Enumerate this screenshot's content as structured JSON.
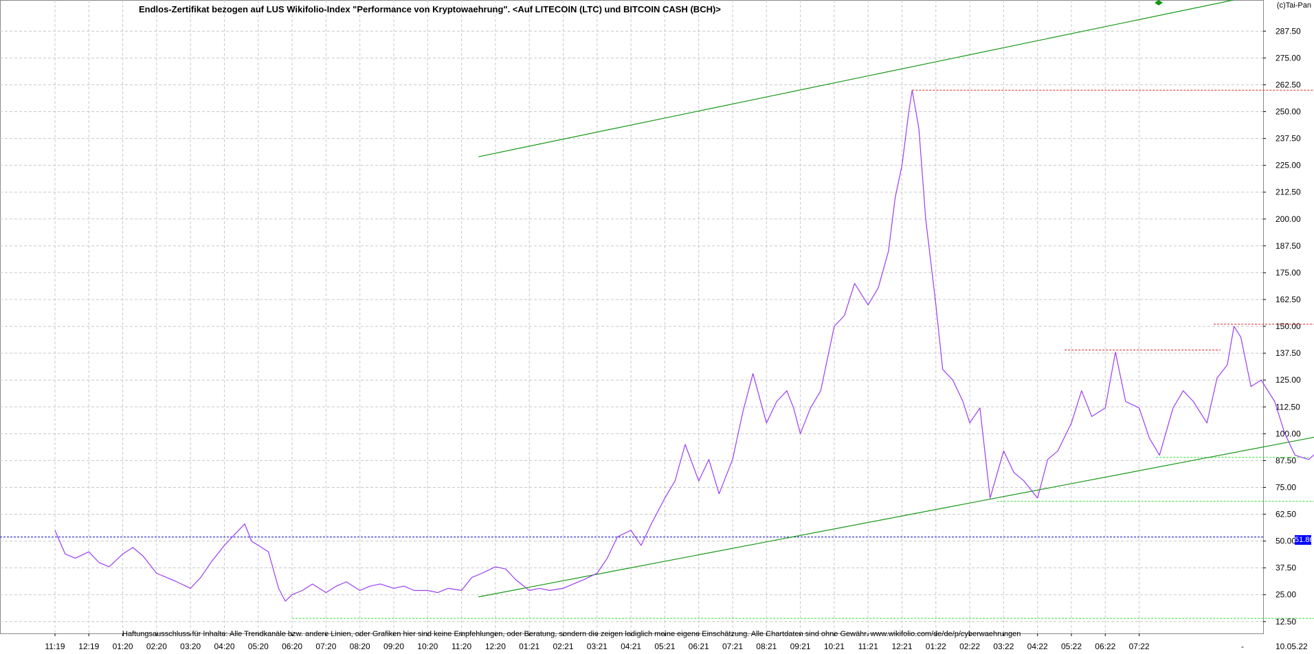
{
  "title": "Endlos-Zertifikat bezogen auf LUS Wikifolio-Index \"Performance von Kryptowaehrung\". <Auf LITECOIN (LTC) und BITCOIN CASH (BCH)>",
  "copyright": "(c)Tai-Pan",
  "disclaimer": "Haftungsausschluss für Inhalte: Alle Trendkanäle bzw. andere Linien, oder Grafiken hier sind keine Empfehlungen, oder Beratung, sondern die zeigen lediglich meine eigene Einschätzung. Alle Chartdaten sind ohne Gewähr.  www.wikifolio.com/de/de/p/cyberwaehrungen",
  "last_price_label": "51.86",
  "date_label": "10.05.22",
  "dash_label": "-",
  "colors": {
    "price_line": "#9a3cf0",
    "trend_line": "#139613",
    "support_line": "#33dd33",
    "resistance_line": "#dd2222",
    "last_price_line": "#0000cc",
    "grid": "#c8c8c8"
  },
  "chart_data": {
    "type": "line",
    "x_tick_labels": [
      "11:19",
      "12:19",
      "01:20",
      "02:20",
      "03:20",
      "04:20",
      "05:20",
      "06:20",
      "07:20",
      "08:20",
      "09:20",
      "10:20",
      "11:20",
      "12:20",
      "01:21",
      "02:21",
      "03:21",
      "04:21",
      "05:21",
      "06:21",
      "07:21",
      "08:21",
      "09:21",
      "10:21",
      "11:21",
      "12:21",
      "01:22",
      "02:22",
      "03:22",
      "04:22",
      "05:22",
      "06:22",
      "07:22"
    ],
    "y_tick_labels": [
      "12.50",
      "25.00",
      "37.50",
      "50.00",
      "62.50",
      "75.00",
      "87.50",
      "100.00",
      "112.50",
      "125.00",
      "137.50",
      "150.00",
      "162.50",
      "175.00",
      "187.50",
      "200.00",
      "212.50",
      "225.00",
      "237.50",
      "250.00",
      "262.50",
      "275.00",
      "287.50"
    ],
    "ylim": [
      7,
      302
    ],
    "grid": true,
    "series": [
      {
        "values": [
          [
            0.0,
            55
          ],
          [
            0.3,
            44
          ],
          [
            0.6,
            42
          ],
          [
            1.0,
            45
          ],
          [
            1.3,
            40
          ],
          [
            1.6,
            38
          ],
          [
            2.0,
            44
          ],
          [
            2.3,
            47
          ],
          [
            2.6,
            43
          ],
          [
            3.0,
            35
          ],
          [
            3.3,
            33
          ],
          [
            3.6,
            31
          ],
          [
            4.0,
            28
          ],
          [
            4.3,
            33
          ],
          [
            4.6,
            40
          ],
          [
            5.0,
            48
          ],
          [
            5.3,
            53
          ],
          [
            5.6,
            58
          ],
          [
            5.8,
            50
          ],
          [
            6.0,
            48
          ],
          [
            6.3,
            45
          ],
          [
            6.6,
            28
          ],
          [
            6.8,
            22
          ],
          [
            7.0,
            25
          ],
          [
            7.3,
            27
          ],
          [
            7.6,
            30
          ],
          [
            8.0,
            26
          ],
          [
            8.3,
            29
          ],
          [
            8.6,
            31
          ],
          [
            9.0,
            27
          ],
          [
            9.3,
            29
          ],
          [
            9.6,
            30
          ],
          [
            10.0,
            28
          ],
          [
            10.3,
            29
          ],
          [
            10.6,
            27
          ],
          [
            11.0,
            27
          ],
          [
            11.3,
            26
          ],
          [
            11.6,
            28
          ],
          [
            12.0,
            27
          ],
          [
            12.3,
            33
          ],
          [
            12.6,
            35
          ],
          [
            13.0,
            38
          ],
          [
            13.3,
            37
          ],
          [
            13.6,
            32
          ],
          [
            14.0,
            27
          ],
          [
            14.3,
            28
          ],
          [
            14.6,
            27
          ],
          [
            15.0,
            28
          ],
          [
            15.3,
            30
          ],
          [
            15.6,
            32
          ],
          [
            16.0,
            35
          ],
          [
            16.3,
            42
          ],
          [
            16.6,
            52
          ],
          [
            17.0,
            55
          ],
          [
            17.3,
            48
          ],
          [
            17.6,
            58
          ],
          [
            18.0,
            70
          ],
          [
            18.3,
            78
          ],
          [
            18.6,
            95
          ],
          [
            19.0,
            78
          ],
          [
            19.3,
            88
          ],
          [
            19.6,
            72
          ],
          [
            20.0,
            88
          ],
          [
            20.3,
            110
          ],
          [
            20.6,
            128
          ],
          [
            21.0,
            105
          ],
          [
            21.3,
            115
          ],
          [
            21.6,
            120
          ],
          [
            21.8,
            112
          ],
          [
            22.0,
            100
          ],
          [
            22.3,
            112
          ],
          [
            22.6,
            120
          ],
          [
            23.0,
            150
          ],
          [
            23.3,
            155
          ],
          [
            23.6,
            170
          ],
          [
            24.0,
            160
          ],
          [
            24.3,
            168
          ],
          [
            24.6,
            185
          ],
          [
            24.8,
            210
          ],
          [
            25.0,
            225
          ],
          [
            25.2,
            250
          ],
          [
            25.3,
            260
          ],
          [
            25.5,
            242
          ],
          [
            25.7,
            200
          ],
          [
            26.0,
            160
          ],
          [
            26.2,
            130
          ],
          [
            26.5,
            125
          ],
          [
            26.8,
            115
          ],
          [
            27.0,
            105
          ],
          [
            27.3,
            112
          ],
          [
            27.6,
            70
          ],
          [
            28.0,
            92
          ],
          [
            28.3,
            82
          ],
          [
            28.6,
            78
          ],
          [
            29.0,
            70
          ],
          [
            29.3,
            88
          ],
          [
            29.6,
            92
          ],
          [
            30.0,
            105
          ],
          [
            30.3,
            120
          ],
          [
            30.6,
            108
          ],
          [
            31.0,
            112
          ],
          [
            31.3,
            138
          ],
          [
            31.6,
            115
          ],
          [
            32.0,
            112
          ],
          [
            32.3,
            98
          ],
          [
            32.6,
            90
          ],
          [
            33.0,
            112
          ],
          [
            33.3,
            120
          ],
          [
            33.6,
            115
          ],
          [
            34.0,
            105
          ],
          [
            34.3,
            126
          ],
          [
            34.6,
            132
          ],
          [
            34.8,
            150
          ],
          [
            35.0,
            145
          ],
          [
            35.3,
            122
          ],
          [
            35.6,
            125
          ],
          [
            36.0,
            115
          ],
          [
            36.3,
            100
          ],
          [
            36.6,
            90
          ],
          [
            37.0,
            88
          ],
          [
            37.3,
            92
          ],
          [
            37.6,
            84
          ],
          [
            38.0,
            75
          ],
          [
            38.3,
            70
          ],
          [
            38.6,
            60
          ],
          [
            39.0,
            62
          ],
          [
            39.3,
            70
          ],
          [
            39.6,
            60
          ],
          [
            40.0,
            58
          ],
          [
            40.3,
            62
          ],
          [
            40.6,
            65
          ],
          [
            41.0,
            75
          ],
          [
            41.3,
            78
          ],
          [
            41.6,
            72
          ],
          [
            42.0,
            62
          ],
          [
            42.3,
            65
          ],
          [
            42.6,
            60
          ],
          [
            42.8,
            52
          ]
        ]
      }
    ],
    "last_price": 51.86
  },
  "annotation_lines": {
    "trend_lines": [
      {
        "points": [
          [
            12.5,
            24
          ],
          [
            47.0,
            128
          ]
        ]
      },
      {
        "points": [
          [
            12.5,
            229
          ],
          [
            47.0,
            342
          ]
        ]
      }
    ],
    "resistance_lines": [
      {
        "y": 260,
        "x_range": [
          25.3,
          47.0
        ]
      },
      {
        "y": 139,
        "x_range": [
          29.8,
          34.4
        ]
      },
      {
        "y": 151,
        "x_range": [
          34.2,
          39.0
        ]
      }
    ],
    "support_lines": [
      {
        "y": 68.5,
        "x_range": [
          27.8,
          47.0
        ]
      },
      {
        "y": 89,
        "x_range": [
          32.5,
          37.0
        ]
      },
      {
        "y": 14,
        "x_range": [
          7.0,
          47.0
        ]
      }
    ]
  }
}
